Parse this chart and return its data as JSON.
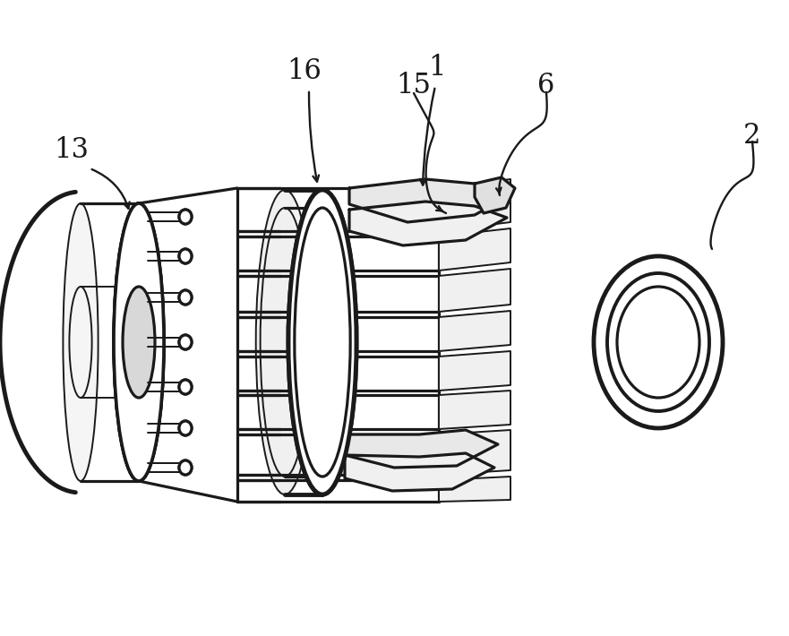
{
  "bg_color": "#ffffff",
  "line_color": "#1a1a1a",
  "lw_main": 2.3,
  "lw_thin": 1.4,
  "lw_thick": 3.5,
  "fig_width": 8.81,
  "fig_height": 7.1,
  "dpi": 100
}
